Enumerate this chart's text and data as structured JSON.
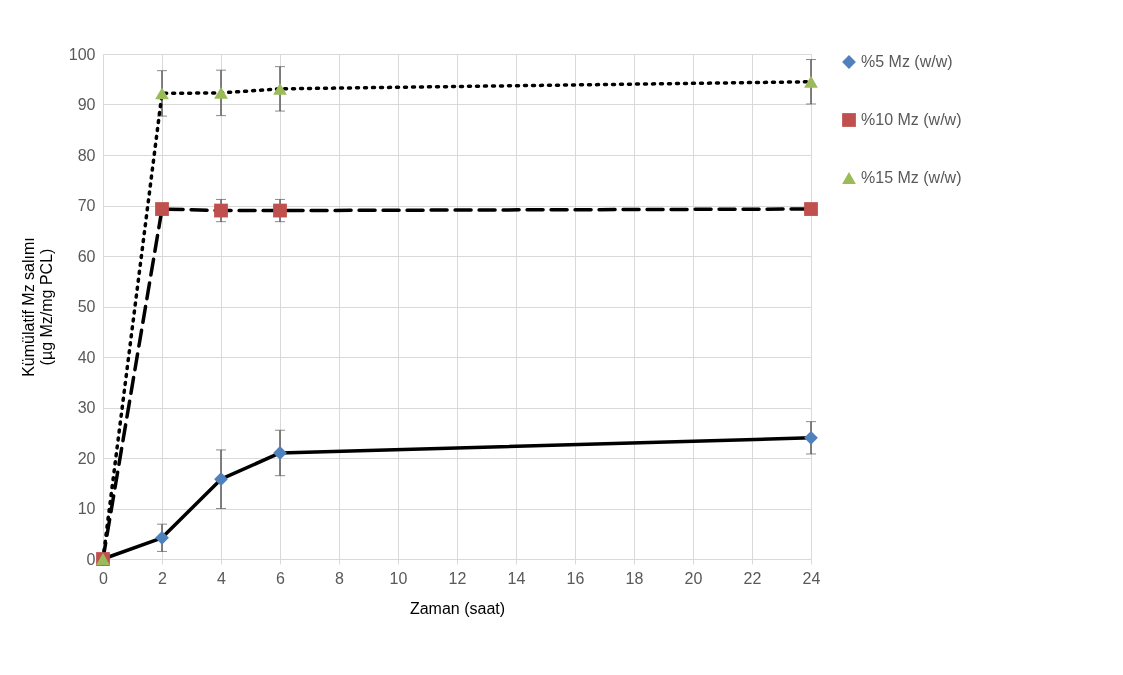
{
  "chart_data": {
    "type": "line",
    "xlabel": "Zaman (saat)",
    "ylabel": "Kümülatif Mz salımı\n(µg Mz/mg PCL)",
    "x": [
      0,
      2,
      4,
      6,
      24
    ],
    "xlim": [
      0,
      24
    ],
    "xticks": [
      0,
      2,
      4,
      6,
      8,
      10,
      12,
      14,
      16,
      18,
      20,
      22,
      24
    ],
    "ylim": [
      0,
      100
    ],
    "yticks": [
      0,
      10,
      20,
      30,
      40,
      50,
      60,
      70,
      80,
      90,
      100
    ],
    "grid": true,
    "legend": "right",
    "series": [
      {
        "name": "%5 Mz (w/w)",
        "color": "#4f81bd",
        "marker": "diamond",
        "line_style": "solid",
        "values": [
          0,
          4.2,
          15.8,
          21,
          24
        ],
        "errors": [
          null,
          2.7,
          5.8,
          4.5,
          3.2
        ]
      },
      {
        "name": "%10 Mz (w/w)",
        "color": "#c0504d",
        "marker": "square",
        "line_style": "dashed",
        "values": [
          0,
          69.3,
          69,
          69,
          69.3
        ],
        "errors": [
          null,
          null,
          2.2,
          2.2,
          null
        ]
      },
      {
        "name": "%15 Mz (w/w)",
        "color": "#9bbb59",
        "marker": "triangle",
        "line_style": "dotted",
        "values": [
          0,
          92.2,
          92.3,
          93.1,
          94.5
        ],
        "errors": [
          null,
          4.5,
          4.5,
          4.4,
          4.4
        ]
      }
    ]
  }
}
